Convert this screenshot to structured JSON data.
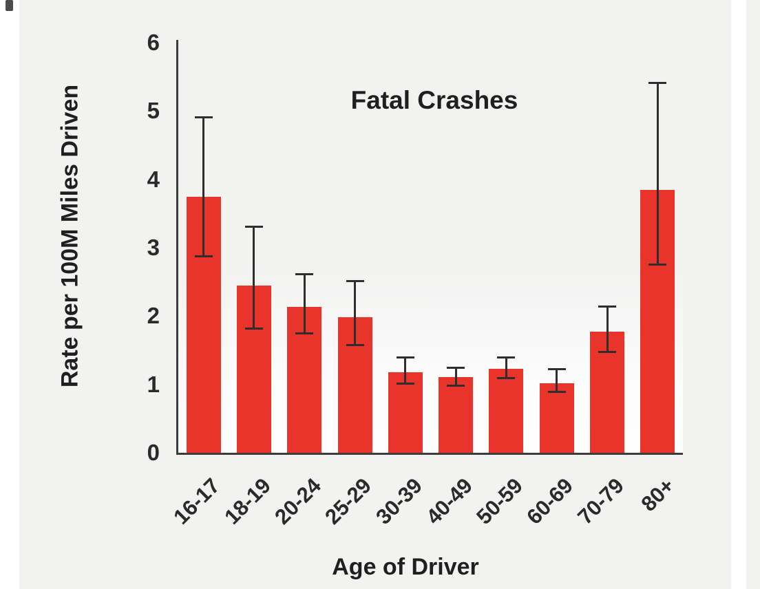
{
  "background_color": "#f2f2f1",
  "chart_data": {
    "type": "bar",
    "title": "Fatal Crashes",
    "xlabel": "Age of Driver",
    "ylabel": "Rate per 100M Miles Driven",
    "ylim": [
      0,
      6
    ],
    "yticks": [
      0,
      1,
      2,
      3,
      4,
      5,
      6
    ],
    "grid": false,
    "legend": "none",
    "categories": [
      "16-17",
      "18-19",
      "20-24",
      "25-29",
      "30-39",
      "40-49",
      "50-59",
      "60-69",
      "70-79",
      "80+"
    ],
    "values": [
      3.74,
      2.45,
      2.13,
      1.98,
      1.18,
      1.11,
      1.23,
      1.02,
      1.77,
      3.85
    ],
    "error_low": [
      2.87,
      1.82,
      1.75,
      1.58,
      1.01,
      0.98,
      1.09,
      0.89,
      1.47,
      2.75
    ],
    "error_high": [
      4.91,
      3.31,
      2.61,
      2.51,
      1.39,
      1.24,
      1.39,
      1.22,
      2.14,
      5.41
    ],
    "bar_color": "#e8342b",
    "error_color": "#2e2e2e",
    "axis_color": "#3c3c3c"
  }
}
